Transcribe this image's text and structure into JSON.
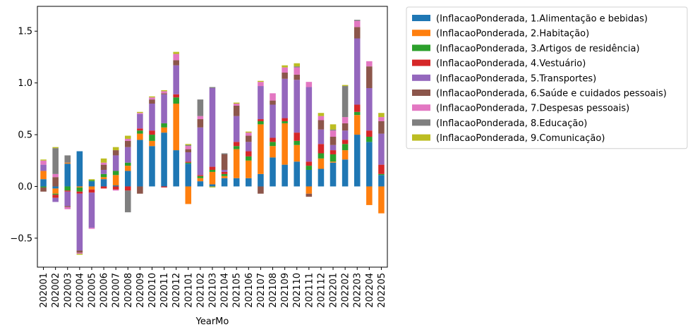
{
  "chart_data": {
    "type": "bar",
    "stacked": true,
    "xlabel": "YearMo",
    "ylabel": "",
    "ylim": [
      -0.78,
      1.74
    ],
    "yticks": [
      -0.5,
      0.0,
      0.5,
      1.0,
      1.5
    ],
    "ytick_labels": [
      "−0.5",
      "0.0",
      "0.5",
      "1.0",
      "1.5"
    ],
    "grid": false,
    "legend_position": "outside-right",
    "categories": [
      "202001",
      "202002",
      "202003",
      "202004",
      "202005",
      "202006",
      "202007",
      "202008",
      "202009",
      "202010",
      "202011",
      "202012",
      "202101",
      "202102",
      "202103",
      "202104",
      "202105",
      "202106",
      "202107",
      "202108",
      "202109",
      "202110",
      "202111",
      "202112",
      "202201",
      "202202",
      "202203",
      "202204",
      "202205"
    ],
    "series": [
      {
        "name": "(InflacaoPonderada, 1.Alimentação e bebidas)",
        "color": "#1f77b4",
        "values": [
          0.07,
          -0.02,
          0.22,
          0.34,
          0.05,
          0.07,
          0.01,
          0.15,
          0.45,
          0.39,
          0.52,
          0.35,
          0.22,
          0.05,
          0.02,
          0.08,
          0.08,
          0.08,
          0.12,
          0.28,
          0.21,
          0.24,
          0.16,
          0.17,
          0.23,
          0.26,
          0.5,
          0.43,
          0.11
        ]
      },
      {
        "name": "(InflacaoPonderada, 2.Habitação)",
        "color": "#ff7f0e",
        "values": [
          0.08,
          -0.05,
          0.01,
          -0.01,
          -0.03,
          0.02,
          0.1,
          0.05,
          0.06,
          0.05,
          0.05,
          0.45,
          -0.17,
          0.03,
          0.12,
          0.02,
          0.28,
          0.17,
          0.48,
          0.11,
          0.4,
          0.16,
          -0.07,
          0.1,
          0.01,
          0.09,
          0.19,
          -0.18,
          -0.26
        ]
      },
      {
        "name": "(InflacaoPonderada, 3.Artigos de residência)",
        "color": "#2ca02c",
        "values": [
          -0.01,
          -0.01,
          -0.04,
          -0.04,
          0.01,
          0.03,
          0.04,
          0.03,
          0.03,
          0.06,
          0.04,
          0.06,
          0.01,
          0.02,
          0.02,
          0.02,
          0.03,
          0.04,
          0.03,
          0.04,
          0.02,
          0.04,
          0.04,
          0.05,
          0.07,
          0.06,
          0.03,
          0.05,
          0.01
        ]
      },
      {
        "name": "(InflacaoPonderada, 4.Vestuário)",
        "color": "#d62728",
        "values": [
          0.0,
          -0.03,
          -0.01,
          -0.02,
          -0.03,
          -0.02,
          -0.03,
          -0.04,
          0.02,
          0.04,
          -0.01,
          0.03,
          0.01,
          0.01,
          0.03,
          0.02,
          0.04,
          0.05,
          0.02,
          0.04,
          0.03,
          0.08,
          0.04,
          0.09,
          0.04,
          0.04,
          0.07,
          0.06,
          0.09
        ]
      },
      {
        "name": "(InflacaoPonderada, 5.Transportes)",
        "color": "#9467bd",
        "values": [
          0.06,
          -0.04,
          -0.14,
          -0.55,
          -0.34,
          0.04,
          0.15,
          0.15,
          0.14,
          0.26,
          0.28,
          0.28,
          0.09,
          0.46,
          0.76,
          0.02,
          0.25,
          0.09,
          0.32,
          0.32,
          0.38,
          0.51,
          0.72,
          0.14,
          0.05,
          0.09,
          0.64,
          0.41,
          0.3
        ]
      },
      {
        "name": "(InflacaoPonderada, 6.Saúde e cuidados pessoais)",
        "color": "#8c564b",
        "values": [
          -0.04,
          0.09,
          -0.01,
          -0.02,
          0.0,
          0.05,
          0.05,
          0.06,
          -0.07,
          0.04,
          0.01,
          0.05,
          0.03,
          0.08,
          0.0,
          0.15,
          0.1,
          0.06,
          -0.07,
          0.04,
          0.06,
          0.05,
          -0.03,
          0.09,
          0.08,
          0.07,
          0.11,
          0.21,
          0.12
        ]
      },
      {
        "name": "(InflacaoPonderada, 7.Despesas pessoais)",
        "color": "#e377c2",
        "values": [
          0.04,
          0.03,
          -0.02,
          -0.01,
          -0.01,
          0.02,
          -0.01,
          0.02,
          0.01,
          0.02,
          0.02,
          0.06,
          0.03,
          0.03,
          0.0,
          0.0,
          0.02,
          0.03,
          0.04,
          0.07,
          0.05,
          0.07,
          0.05,
          0.04,
          0.06,
          0.06,
          0.06,
          0.05,
          0.04
        ]
      },
      {
        "name": "(InflacaoPonderada, 8.Educação)",
        "color": "#7f7f7f",
        "values": [
          0.0,
          0.25,
          0.07,
          0.0,
          0.0,
          0.0,
          0.0,
          -0.21,
          0.0,
          0.0,
          0.0,
          0.0,
          0.01,
          0.16,
          0.01,
          0.01,
          0.0,
          0.0,
          0.0,
          0.0,
          0.0,
          0.01,
          0.0,
          0.0,
          0.01,
          0.3,
          0.01,
          0.0,
          0.0
        ]
      },
      {
        "name": "(InflacaoPonderada, 9.Comunicação)",
        "color": "#bcbd22",
        "values": [
          0.01,
          0.01,
          0.0,
          -0.01,
          0.01,
          0.04,
          0.03,
          0.03,
          0.01,
          0.01,
          0.01,
          0.02,
          0.01,
          0.0,
          -0.01,
          0.0,
          0.01,
          0.01,
          0.01,
          0.0,
          0.02,
          0.03,
          0.0,
          0.03,
          0.05,
          0.01,
          0.0,
          0.0,
          0.04
        ]
      }
    ]
  }
}
